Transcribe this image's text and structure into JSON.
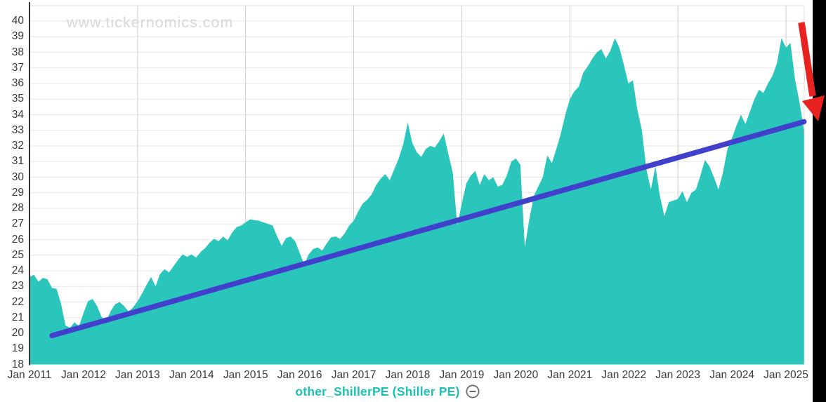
{
  "watermark": "www.tickernomics.com",
  "legend": {
    "label": "other_ShillerPE (Shiller PE)",
    "remove_icon": "minus-circle"
  },
  "annotations": {
    "red_arrow": {
      "description": "hand-drawn red arrow pointing down-right at the latest falling values",
      "position": "top-right"
    },
    "edge_bar": "black vertical strip along right screen edge"
  },
  "colors": {
    "area": "#2bc6bb",
    "trend": "#4140cc",
    "arrow": "#e8221e",
    "grid_h": "#e7e7e7",
    "grid_v": "#cbcbcb",
    "border": "#dedede",
    "axis": "#363636",
    "label": "#3a3a3a",
    "watermark": "#d8d8d8",
    "legend_text": "#1ec0b5",
    "icon": "#666666",
    "edge_bar": "#000000",
    "background": "#ffffff"
  },
  "chart_data": {
    "type": "area",
    "title": "",
    "xlabel": "",
    "ylabel": "",
    "ylim": [
      18,
      40
    ],
    "y_ticks": [
      18,
      19,
      20,
      21,
      22,
      23,
      24,
      25,
      26,
      27,
      28,
      29,
      30,
      31,
      32,
      33,
      34,
      35,
      36,
      37,
      38,
      39,
      40
    ],
    "x_tick_labels": [
      "Jan 2011",
      "Jan 2012",
      "Jan 2013",
      "Jan 2014",
      "Jan 2015",
      "Jan 2016",
      "Jan 2017",
      "Jan 2018",
      "Jan 2019",
      "Jan 2020",
      "Jan 2021",
      "Jan 2022",
      "Jan 2023",
      "Jan 2024",
      "Jan 2025"
    ],
    "vertical_gridline_years": [
      2013,
      2015,
      2017,
      2019,
      2021,
      2023,
      2025
    ],
    "grid": true,
    "legend_position": "bottom-center",
    "series": [
      {
        "name": "other_ShillerPE (Shiller PE)",
        "frequency": "monthly",
        "x_start": "2011-01",
        "x_end": "2025-05",
        "values": [
          23.6,
          23.75,
          23.3,
          23.55,
          23.45,
          22.9,
          22.85,
          21.9,
          20.5,
          20.35,
          20.7,
          20.45,
          21.3,
          22.05,
          22.2,
          21.75,
          21.05,
          20.75,
          21.4,
          21.85,
          22.0,
          21.75,
          21.4,
          21.65,
          22.05,
          22.55,
          23.1,
          23.6,
          23.0,
          23.8,
          24.1,
          23.9,
          24.3,
          24.7,
          25.05,
          24.9,
          25.05,
          24.85,
          25.2,
          25.45,
          25.8,
          26.05,
          25.9,
          26.2,
          25.95,
          26.45,
          26.8,
          26.9,
          27.1,
          27.3,
          27.25,
          27.2,
          27.1,
          27.0,
          26.9,
          26.2,
          25.6,
          26.1,
          26.2,
          25.9,
          25.15,
          24.4,
          25.05,
          25.4,
          25.5,
          25.3,
          25.75,
          26.15,
          26.2,
          26.05,
          26.4,
          26.9,
          27.2,
          27.8,
          28.3,
          28.55,
          28.9,
          29.5,
          29.9,
          30.2,
          29.8,
          30.5,
          31.2,
          32.1,
          33.5,
          32.2,
          31.6,
          31.3,
          31.8,
          32.0,
          31.9,
          32.3,
          32.8,
          31.5,
          30.3,
          26.9,
          28.3,
          29.6,
          30.1,
          30.4,
          29.5,
          30.2,
          29.8,
          30.0,
          29.4,
          29.5,
          30.1,
          31.0,
          31.2,
          30.8,
          25.5,
          27.3,
          28.8,
          29.4,
          30.0,
          31.4,
          30.9,
          31.8,
          32.8,
          34.0,
          35.0,
          35.5,
          35.8,
          36.7,
          37.1,
          37.6,
          38.0,
          38.2,
          37.6,
          38.1,
          38.9,
          38.3,
          37.2,
          36.0,
          36.2,
          34.3,
          33.0,
          30.5,
          29.2,
          30.7,
          28.8,
          27.5,
          28.4,
          28.5,
          28.6,
          29.1,
          28.4,
          29.0,
          29.2,
          30.1,
          31.1,
          30.7,
          30.0,
          29.2,
          30.3,
          31.8,
          32.5,
          33.3,
          34.0,
          33.4,
          34.2,
          35.0,
          35.6,
          35.4,
          36.0,
          36.5,
          37.3,
          38.9,
          38.3,
          38.6,
          36.3,
          34.8,
          33.0
        ]
      }
    ],
    "trend_line": {
      "name": "linear trend",
      "start": {
        "x": "2011-06",
        "value": 19.85
      },
      "end": {
        "x": "2025-05",
        "value": 33.55
      }
    }
  }
}
